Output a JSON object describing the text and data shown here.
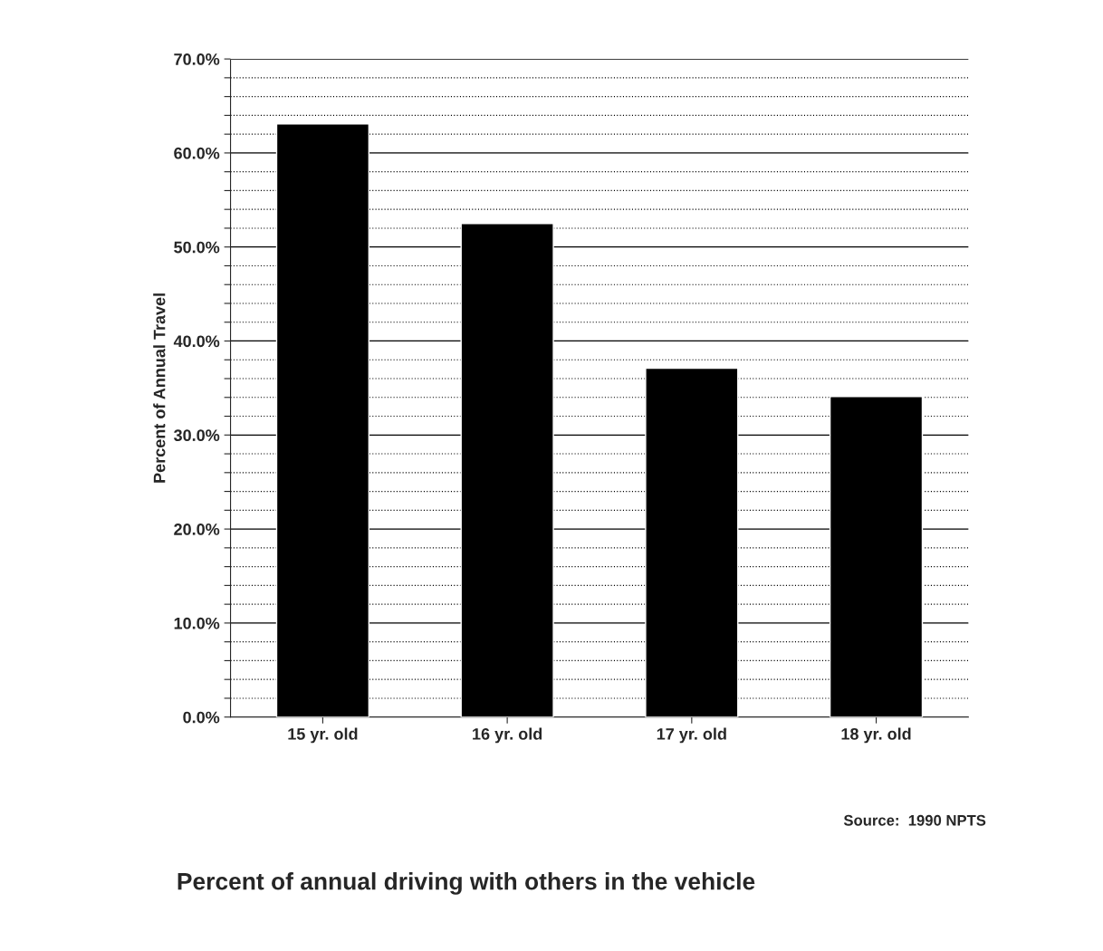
{
  "chart_data": {
    "type": "bar",
    "title": "Percent of annual driving with others in the vehicle",
    "ylabel": "Percent of Annual Travel",
    "categories": [
      "15 yr. old",
      "16 yr. old",
      "17 yr. old",
      "18 yr. old"
    ],
    "values": [
      63.1,
      52.5,
      37.1,
      34.1
    ],
    "color": "#000000",
    "ylim": [
      0,
      70
    ],
    "yticks": [
      {
        "value": 0,
        "label": "0.0%"
      },
      {
        "value": 2,
        "label": null
      },
      {
        "value": 4,
        "label": null
      },
      {
        "value": 6,
        "label": null
      },
      {
        "value": 8,
        "label": null
      },
      {
        "value": 10,
        "label": "10.0%"
      },
      {
        "value": 12,
        "label": null
      },
      {
        "value": 14,
        "label": null
      },
      {
        "value": 16,
        "label": null
      },
      {
        "value": 18,
        "label": null
      },
      {
        "value": 20,
        "label": "20.0%"
      },
      {
        "value": 22,
        "label": null
      },
      {
        "value": 24,
        "label": null
      },
      {
        "value": 26,
        "label": null
      },
      {
        "value": 28,
        "label": null
      },
      {
        "value": 30,
        "label": "30.0%"
      },
      {
        "value": 32,
        "label": null
      },
      {
        "value": 34,
        "label": null
      },
      {
        "value": 36,
        "label": null
      },
      {
        "value": 38,
        "label": null
      },
      {
        "value": 40,
        "label": "40.0%"
      },
      {
        "value": 42,
        "label": null
      },
      {
        "value": 44,
        "label": null
      },
      {
        "value": 46,
        "label": null
      },
      {
        "value": 48,
        "label": null
      },
      {
        "value": 50,
        "label": "50.0%"
      },
      {
        "value": 52,
        "label": null
      },
      {
        "value": 54,
        "label": null
      },
      {
        "value": 56,
        "label": null
      },
      {
        "value": 58,
        "label": null
      },
      {
        "value": 60,
        "label": "60.0%"
      },
      {
        "value": 62,
        "label": null
      },
      {
        "value": 64,
        "label": null
      },
      {
        "value": 66,
        "label": null
      },
      {
        "value": 68,
        "label": null
      },
      {
        "value": 70,
        "label": "70.0%"
      }
    ],
    "grid": "y",
    "annotations": [
      "Source:  1990 NPTS"
    ]
  }
}
